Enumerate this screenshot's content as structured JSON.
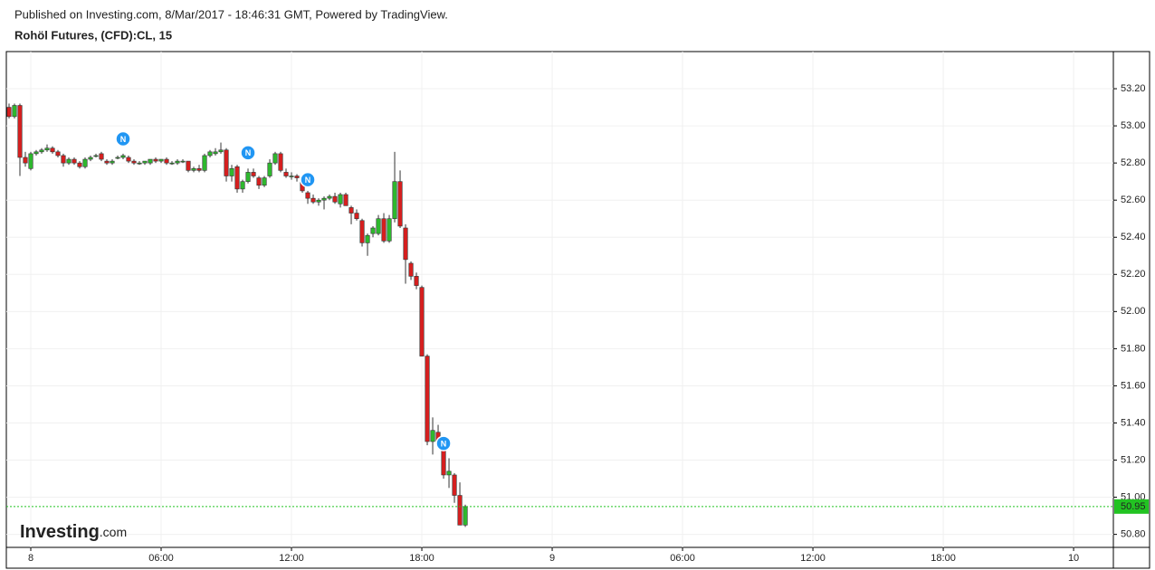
{
  "source": "Published on Investing.com, 8/Mar/2017 - 18:46:31 GMT, Powered by TradingView.",
  "chart_data": {
    "type": "candlestick",
    "title": "Rohöl Futures, (CFD):CL, 15",
    "x": [
      -1,
      -0.75,
      -0.5,
      -0.25,
      0,
      0.25,
      0.5,
      0.75,
      1,
      1.25,
      1.5,
      1.75,
      2,
      2.25,
      2.5,
      2.75,
      3,
      3.25,
      3.5,
      3.75,
      4,
      4.25,
      4.5,
      4.75,
      5,
      5.25,
      5.5,
      5.75,
      6,
      6.25,
      6.5,
      6.75,
      7,
      7.25,
      7.5,
      7.75,
      8,
      8.25,
      8.5,
      8.75,
      9,
      9.25,
      9.5,
      9.75,
      10,
      10.25,
      10.5,
      10.75,
      11,
      11.25,
      11.5,
      11.75,
      12,
      12.25,
      12.5,
      12.75,
      13,
      13.25,
      13.5,
      13.75,
      14,
      14.25,
      14.5,
      14.75,
      15,
      15.25,
      15.5,
      15.75,
      16,
      16.25,
      16.5,
      16.75,
      17,
      17.25,
      17.5,
      17.75,
      18,
      18.25,
      18.5,
      18.75,
      19,
      19.25,
      19.5,
      19.75,
      20
    ],
    "open": [
      53.1,
      53.05,
      53.11,
      52.83,
      52.77,
      52.85,
      52.86,
      52.87,
      52.88,
      52.86,
      52.84,
      52.8,
      52.82,
      52.8,
      52.78,
      52.82,
      52.84,
      52.85,
      52.81,
      52.8,
      52.83,
      52.83,
      52.83,
      52.81,
      52.8,
      52.8,
      52.8,
      52.82,
      52.81,
      52.82,
      52.8,
      52.8,
      52.81,
      52.81,
      52.76,
      52.77,
      52.76,
      52.84,
      52.85,
      52.86,
      52.87,
      52.73,
      52.78,
      52.66,
      52.7,
      52.75,
      52.72,
      52.68,
      52.73,
      52.8,
      52.85,
      52.75,
      52.73,
      52.73,
      52.71,
      52.64,
      52.61,
      52.59,
      52.6,
      52.61,
      52.62,
      52.58,
      52.63,
      52.56,
      52.53,
      52.49,
      52.37,
      52.42,
      52.42,
      52.5,
      52.38,
      52.5,
      52.7,
      52.45,
      52.26,
      52.19,
      52.13,
      51.76,
      51.3,
      51.35,
      51.26,
      51.12,
      51.12,
      51.01,
      50.85
    ],
    "high": [
      53.12,
      53.12,
      53.12,
      52.86,
      52.86,
      52.87,
      52.88,
      52.9,
      52.89,
      52.87,
      52.85,
      52.83,
      52.83,
      52.81,
      52.83,
      52.84,
      52.85,
      52.86,
      52.82,
      52.82,
      52.84,
      52.85,
      52.84,
      52.82,
      52.81,
      52.81,
      52.82,
      52.83,
      52.82,
      52.83,
      52.81,
      52.82,
      52.82,
      52.81,
      52.78,
      52.79,
      52.85,
      52.87,
      52.88,
      52.91,
      52.88,
      52.79,
      52.79,
      52.71,
      52.77,
      52.77,
      52.73,
      52.73,
      52.82,
      52.86,
      52.86,
      52.77,
      52.75,
      52.74,
      52.73,
      52.65,
      52.63,
      52.61,
      52.62,
      52.63,
      52.64,
      52.64,
      52.64,
      52.57,
      52.55,
      52.5,
      52.42,
      52.46,
      52.52,
      52.53,
      52.52,
      52.86,
      52.76,
      52.47,
      52.27,
      52.21,
      52.14,
      51.77,
      51.43,
      51.39,
      51.33,
      51.21,
      51.13,
      51.08,
      50.96
    ],
    "low": [
      53.04,
      53.04,
      52.73,
      52.78,
      52.76,
      52.84,
      52.85,
      52.86,
      52.85,
      52.83,
      52.78,
      52.79,
      52.79,
      52.77,
      52.77,
      52.81,
      52.83,
      52.81,
      52.79,
      52.79,
      52.82,
      52.82,
      52.8,
      52.79,
      52.79,
      52.79,
      52.79,
      52.8,
      52.8,
      52.79,
      52.79,
      52.79,
      52.8,
      52.75,
      52.75,
      52.75,
      52.75,
      52.83,
      52.84,
      52.85,
      52.7,
      52.7,
      52.64,
      52.64,
      52.69,
      52.72,
      52.66,
      52.67,
      52.72,
      52.79,
      52.75,
      52.72,
      52.71,
      52.7,
      52.64,
      52.58,
      52.58,
      52.57,
      52.55,
      52.6,
      52.58,
      52.56,
      52.57,
      52.47,
      52.49,
      52.35,
      52.3,
      52.4,
      52.41,
      52.37,
      52.37,
      52.48,
      52.45,
      52.15,
      52.17,
      52.12,
      51.76,
      51.28,
      51.23,
      51.28,
      51.1,
      51.05,
      50.97,
      50.85,
      50.84
    ],
    "close": [
      53.05,
      53.11,
      52.83,
      52.8,
      52.85,
      52.86,
      52.87,
      52.88,
      52.86,
      52.84,
      52.8,
      52.82,
      52.8,
      52.78,
      52.82,
      52.83,
      52.84,
      52.82,
      52.8,
      52.81,
      52.83,
      52.84,
      52.81,
      52.8,
      52.8,
      52.81,
      52.82,
      52.81,
      52.82,
      52.8,
      52.8,
      52.81,
      52.81,
      52.76,
      52.77,
      52.76,
      52.84,
      52.86,
      52.86,
      52.87,
      52.73,
      52.77,
      52.66,
      52.7,
      52.75,
      52.73,
      52.68,
      52.72,
      52.8,
      52.85,
      52.76,
      52.73,
      52.73,
      52.72,
      52.65,
      52.61,
      52.59,
      52.6,
      52.61,
      52.62,
      52.59,
      52.63,
      52.57,
      52.53,
      52.5,
      52.37,
      52.41,
      52.45,
      52.5,
      52.38,
      52.5,
      52.7,
      52.46,
      52.28,
      52.19,
      52.14,
      51.76,
      51.3,
      51.36,
      51.3,
      51.12,
      51.14,
      51.01,
      50.85,
      50.95
    ],
    "up_color": "#2eb82e",
    "down_color": "#d61f1f",
    "last_color": "#22c322",
    "grid": true,
    "xlim": [
      -1.125,
      49.83
    ],
    "xticks": [
      {
        "value": 0,
        "label": "8"
      },
      {
        "value": 6,
        "label": "06:00"
      },
      {
        "value": 12,
        "label": "12:00"
      },
      {
        "value": 18,
        "label": "18:00"
      },
      {
        "value": 24,
        "label": "9"
      },
      {
        "value": 30,
        "label": "06:00"
      },
      {
        "value": 36,
        "label": "12:00"
      },
      {
        "value": 42,
        "label": "18:00"
      },
      {
        "value": 48,
        "label": "10"
      }
    ],
    "ylim": [
      50.73,
      53.4
    ],
    "yticks": [
      {
        "value": 50.8,
        "label": "50.80"
      },
      {
        "value": 51.0,
        "label": "51.00"
      },
      {
        "value": 51.2,
        "label": "51.20"
      },
      {
        "value": 51.4,
        "label": "51.40"
      },
      {
        "value": 51.6,
        "label": "51.60"
      },
      {
        "value": 51.8,
        "label": "51.80"
      },
      {
        "value": 52.0,
        "label": "52.00"
      },
      {
        "value": 52.2,
        "label": "52.20"
      },
      {
        "value": 52.4,
        "label": "52.40"
      },
      {
        "value": 52.6,
        "label": "52.60"
      },
      {
        "value": 52.8,
        "label": "52.80"
      },
      {
        "value": 53.0,
        "label": "53.00"
      },
      {
        "value": 53.2,
        "label": "53.20"
      }
    ],
    "events": [
      {
        "x": 4.25,
        "y": 52.93,
        "label": "N"
      },
      {
        "x": 10.0,
        "y": 52.855,
        "label": "N"
      },
      {
        "x": 12.75,
        "y": 52.71,
        "label": "N"
      },
      {
        "x": 19.0,
        "y": 51.29,
        "label": "N"
      }
    ],
    "watermark": {
      "brand": "Investing",
      "suffix": ".com"
    }
  }
}
